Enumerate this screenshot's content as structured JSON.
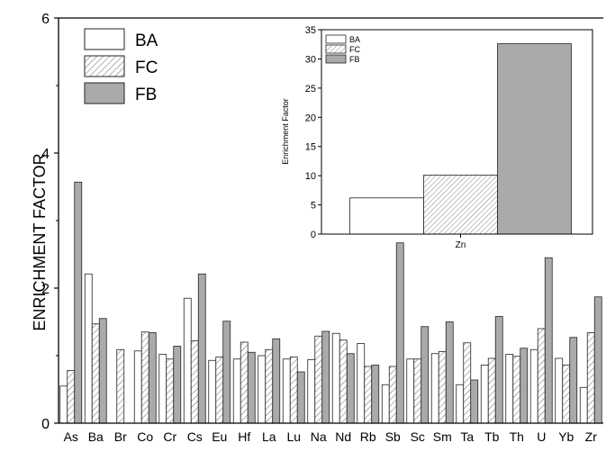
{
  "chart_data": [
    {
      "type": "bar",
      "xlabel": "",
      "ylabel": "ENRICHMENT FACTOR",
      "ylim": [
        0,
        6
      ],
      "yticks": [
        0,
        2,
        4,
        6
      ],
      "legend_position": "top-left",
      "categories": [
        "As",
        "Ba",
        "Br",
        "Co",
        "Cr",
        "Cs",
        "Eu",
        "Hf",
        "La",
        "Lu",
        "Na",
        "Nd",
        "Rb",
        "Sb",
        "Sc",
        "Sm",
        "Ta",
        "Tb",
        "Th",
        "U",
        "Yb",
        "Zr"
      ],
      "series": [
        {
          "name": "BA",
          "pattern": "white",
          "values": [
            0.55,
            2.21,
            0,
            1.07,
            1.02,
            1.85,
            0.93,
            0.95,
            1.0,
            0.95,
            0.94,
            1.33,
            1.18,
            0.57,
            0.95,
            1.03,
            0.57,
            0.86,
            1.02,
            1.09,
            0.96,
            0.53
          ]
        },
        {
          "name": "FC",
          "pattern": "hatched",
          "values": [
            0.78,
            1.47,
            1.09,
            1.35,
            0.95,
            1.22,
            0.98,
            1.2,
            1.09,
            0.98,
            1.29,
            1.23,
            0.84,
            0.84,
            0.95,
            1.06,
            1.19,
            0.96,
            0.99,
            1.4,
            0.86,
            1.34
          ]
        },
        {
          "name": "FB",
          "pattern": "gray",
          "values": [
            3.57,
            1.55,
            0,
            1.34,
            1.14,
            2.21,
            1.51,
            1.05,
            1.25,
            0.76,
            1.36,
            1.03,
            0.86,
            2.67,
            1.43,
            1.5,
            0.64,
            1.58,
            1.11,
            2.45,
            1.27,
            1.87
          ]
        }
      ]
    },
    {
      "type": "bar",
      "inset": true,
      "xlabel": "",
      "ylabel": "Enrichment Factor",
      "ylim": [
        0,
        35
      ],
      "yticks": [
        0,
        5,
        10,
        15,
        20,
        25,
        30,
        35
      ],
      "legend_position": "top-left",
      "categories": [
        "Zn"
      ],
      "series": [
        {
          "name": "BA",
          "pattern": "white",
          "values": [
            6.2
          ]
        },
        {
          "name": "FC",
          "pattern": "hatched",
          "values": [
            10.1
          ]
        },
        {
          "name": "FB",
          "pattern": "gray",
          "values": [
            32.6
          ]
        }
      ]
    }
  ],
  "colors": {
    "gray": "#aaaaaa",
    "white": "#ffffff",
    "stroke": "#222222"
  }
}
